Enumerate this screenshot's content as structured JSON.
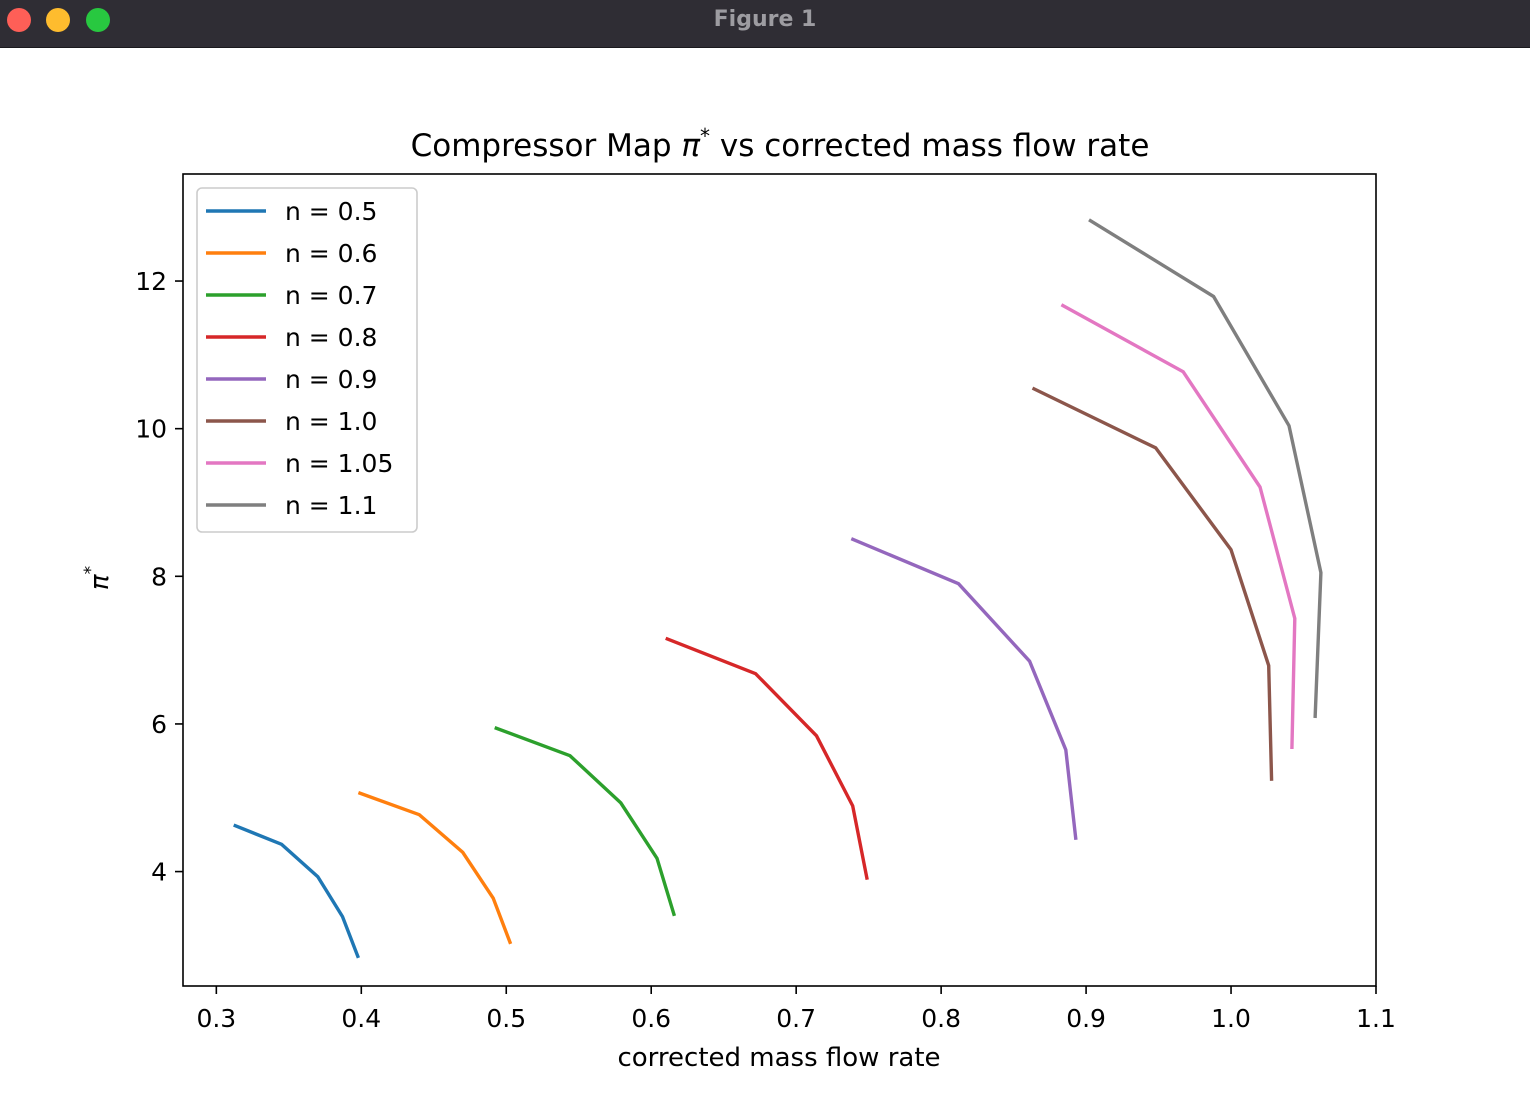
{
  "window": {
    "title": "Figure 1",
    "close_icon": "close-dot-icon",
    "minimize_icon": "minimize-dot-icon",
    "maximize_icon": "maximize-dot-icon"
  },
  "chart_data": {
    "type": "line",
    "title_prefix": "Compressor Map ",
    "title_symbol": "π",
    "title_sup": "*",
    "title_suffix": " vs corrected mass flow rate",
    "xlabel": "corrected mass flow rate",
    "ylabel_symbol": "π",
    "ylabel_sup": "*",
    "xlim": [
      0.277,
      1.1
    ],
    "ylim": [
      2.45,
      13.45
    ],
    "xticks": [
      0.3,
      0.4,
      0.5,
      0.6,
      0.7,
      0.8,
      0.9,
      1.0,
      1.1
    ],
    "xtick_labels": [
      "0.3",
      "0.4",
      "0.5",
      "0.6",
      "0.7",
      "0.8",
      "0.9",
      "1.0",
      "1.1"
    ],
    "yticks": [
      4,
      6,
      8,
      10,
      12
    ],
    "ytick_labels": [
      "4",
      "6",
      "8",
      "10",
      "12"
    ],
    "grid": false,
    "legend_position": "upper-left",
    "series": [
      {
        "name": "n = 0.5",
        "color": "#1f77b4",
        "x": [
          0.312,
          0.345,
          0.37,
          0.387,
          0.398
        ],
        "y": [
          4.63,
          4.37,
          3.93,
          3.39,
          2.83
        ]
      },
      {
        "name": "n = 0.6",
        "color": "#ff7f0e",
        "x": [
          0.398,
          0.44,
          0.47,
          0.491,
          0.503
        ],
        "y": [
          5.07,
          4.77,
          4.26,
          3.64,
          3.02
        ]
      },
      {
        "name": "n = 0.7",
        "color": "#2ca02c",
        "x": [
          0.492,
          0.544,
          0.579,
          0.604,
          0.616
        ],
        "y": [
          5.95,
          5.57,
          4.93,
          4.18,
          3.4
        ]
      },
      {
        "name": "n = 0.8",
        "color": "#d62728",
        "x": [
          0.61,
          0.672,
          0.714,
          0.739,
          0.749
        ],
        "y": [
          7.16,
          6.68,
          5.84,
          4.89,
          3.89
        ]
      },
      {
        "name": "n = 0.9",
        "color": "#9467bd",
        "x": [
          0.738,
          0.812,
          0.861,
          0.886,
          0.893
        ],
        "y": [
          8.51,
          7.9,
          6.85,
          5.65,
          4.43
        ]
      },
      {
        "name": "n = 1.0",
        "color": "#8c564b",
        "x": [
          0.863,
          0.948,
          1.0,
          1.026,
          1.028
        ],
        "y": [
          10.55,
          9.74,
          8.36,
          6.79,
          5.23
        ]
      },
      {
        "name": "n = 1.05",
        "color": "#e377c2",
        "x": [
          0.883,
          0.967,
          1.02,
          1.044,
          1.042
        ],
        "y": [
          11.68,
          10.77,
          9.21,
          7.43,
          5.66
        ]
      },
      {
        "name": "n = 1.1",
        "color": "#7f7f7f",
        "x": [
          0.902,
          0.988,
          1.04,
          1.062,
          1.058
        ],
        "y": [
          12.83,
          11.79,
          10.04,
          8.05,
          6.08
        ]
      }
    ]
  }
}
